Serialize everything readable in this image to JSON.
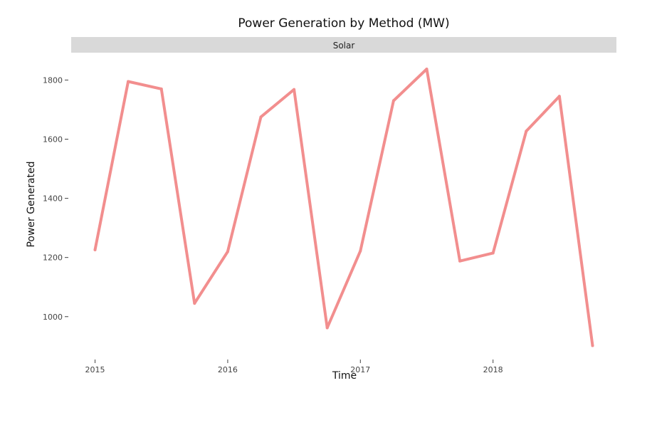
{
  "chart_data": {
    "type": "line",
    "title": "Power Generation by Method (MW)",
    "facet_label": "Solar",
    "xlabel": "Time",
    "ylabel": "Power Generated",
    "x_ticks": [
      "2015",
      "2016",
      "2017",
      "2018"
    ],
    "y_ticks": [
      1000,
      1200,
      1400,
      1600,
      1800
    ],
    "xlim": [
      2014.82,
      2018.93
    ],
    "ylim": [
      855,
      1878
    ],
    "grid": false,
    "line_color": "#f28e8e",
    "series": [
      {
        "x": [
          2015.0,
          2015.25,
          2015.5,
          2015.75,
          2016.0,
          2016.25,
          2016.5,
          2016.75,
          2017.0,
          2017.25,
          2017.5,
          2017.75,
          2018.0,
          2018.25,
          2018.5,
          2018.75
        ],
        "values": [
          1226,
          1795,
          1770,
          1045,
          1220,
          1675,
          1768,
          962,
          1222,
          1730,
          1837,
          1188,
          1215,
          1627,
          1745,
          902
        ]
      }
    ]
  }
}
